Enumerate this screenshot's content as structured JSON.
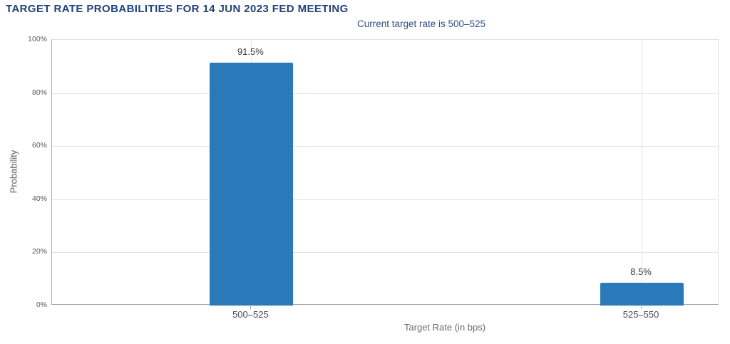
{
  "chart_data": {
    "type": "bar",
    "title": "TARGET RATE PROBABILITIES FOR 14 JUN 2023 FED MEETING",
    "subtitle": "Current target rate is 500–525",
    "categories": [
      "500–525",
      "525–550"
    ],
    "values": [
      91.5,
      8.5
    ],
    "value_labels": [
      "91.5%",
      "8.5%"
    ],
    "xlabel": "Target Rate (in bps)",
    "ylabel": "Probability",
    "ylim": [
      0,
      100
    ],
    "ytick_labels": [
      "0%",
      "20%",
      "40%",
      "60%",
      "80%",
      "100%"
    ],
    "grid": true,
    "legend": "none",
    "bar_color": "#2a7ab9",
    "title_color": "#20427a",
    "subtitle_color": "#2f5080"
  }
}
